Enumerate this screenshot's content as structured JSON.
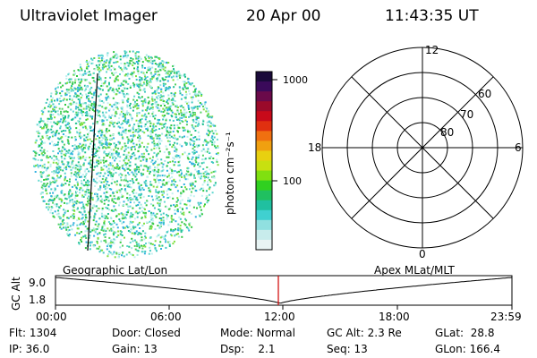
{
  "header": {
    "instrument": "Ultraviolet Imager",
    "date": "20 Apr 00",
    "time": "11:43:35 UT"
  },
  "colorbar": {
    "unit_label": "photon cm⁻²s⁻¹",
    "ticks": [
      "1000",
      "100"
    ]
  },
  "polar": {
    "mlt_labels": {
      "top": "12",
      "bottom": "0",
      "left": "18",
      "right": "6"
    },
    "lat_labels": [
      "60",
      "70",
      "80"
    ]
  },
  "map_labels": {
    "left": "Geographic Lat/Lon",
    "right": "Apex MLat/MLT"
  },
  "timeline": {
    "ylabel": "GC Alt",
    "yticks": [
      "9.0",
      "1.8"
    ],
    "xticks": [
      "00:00",
      "06:00",
      "12:00",
      "18:00",
      "23:59"
    ]
  },
  "status": {
    "flt_label": "Flt:",
    "flt_value": "1304",
    "ip_label": "IP:",
    "ip_value": "36.0",
    "door_label": "Door:",
    "door_value": "Closed",
    "gain_label": "Gain:",
    "gain_value": "13",
    "mode_label": "Mode:",
    "mode_value": "Normal",
    "dsp_label": "Dsp:",
    "dsp_value": "2.1",
    "gcalt_label": "GC Alt:",
    "gcalt_value": "2.3 Re",
    "seq_label": "Seq:",
    "seq_value": "13",
    "glat_label": "GLat:",
    "glat_value": "28.8",
    "glon_label": "GLon:",
    "glon_value": "166.4"
  },
  "colors": {
    "accent_marker": "#d00000"
  }
}
